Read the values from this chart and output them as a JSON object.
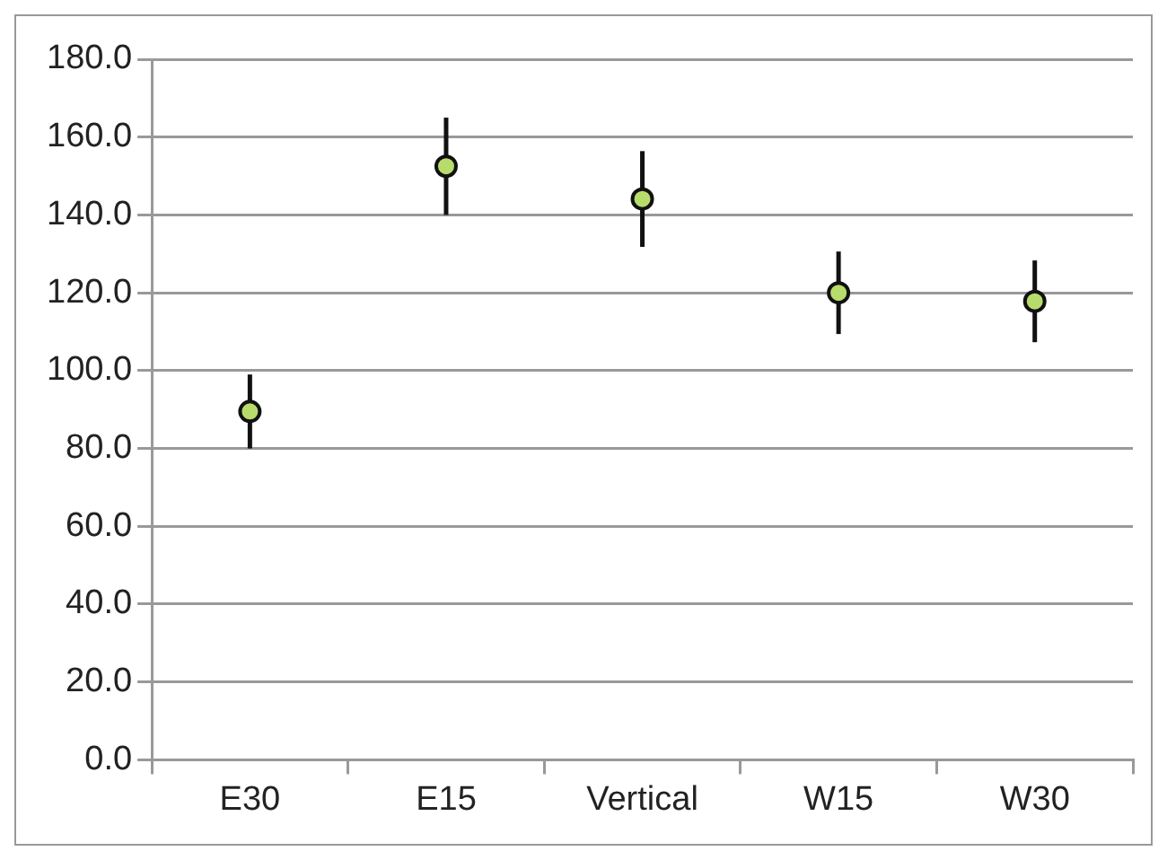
{
  "chart_data": {
    "type": "scatter",
    "categories": [
      "E30",
      "E15",
      "Vertical",
      "W15",
      "W30"
    ],
    "series": [
      {
        "color": "#b8dc6c",
        "values": [
          89.5,
          152.5,
          144.1,
          120,
          117.8
        ],
        "errors": [
          9.5,
          12.5,
          12.3,
          10.6,
          10.5
        ]
      }
    ],
    "ylim": [
      0,
      180
    ],
    "yticks": [
      {
        "value": 0,
        "label": "0.0"
      },
      {
        "value": 20,
        "label": "20.0"
      },
      {
        "value": 40,
        "label": "40.0"
      },
      {
        "value": 60,
        "label": "60.0"
      },
      {
        "value": 80,
        "label": "80.0"
      },
      {
        "value": 100,
        "label": "100.0"
      },
      {
        "value": 120,
        "label": "120.0"
      },
      {
        "value": 140,
        "label": "140.0"
      },
      {
        "value": 160,
        "label": "160.0"
      },
      {
        "value": 180,
        "label": "180.0"
      }
    ],
    "grid": "y",
    "marker": "circle",
    "legend": false
  }
}
